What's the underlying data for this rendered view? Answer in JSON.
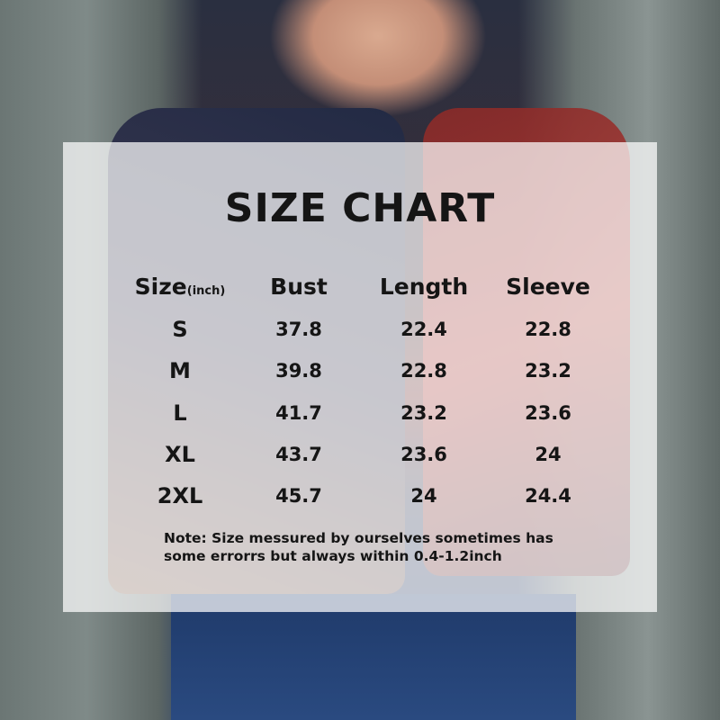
{
  "title": "SIZE CHART",
  "table": {
    "headers": [
      {
        "label": "Size",
        "unit": "(inch)"
      },
      {
        "label": "Bust"
      },
      {
        "label": "Length"
      },
      {
        "label": "Sleeve"
      }
    ],
    "rows": [
      [
        "S",
        "37.8",
        "22.4",
        "22.8"
      ],
      [
        "M",
        "39.8",
        "22.8",
        "23.2"
      ],
      [
        "L",
        "41.7",
        "23.2",
        "23.6"
      ],
      [
        "XL",
        "43.7",
        "23.6",
        "24"
      ],
      [
        "2XL",
        "45.7",
        "24",
        "24.4"
      ]
    ]
  },
  "note_line1": "Note:  Size messured by ourselves sometimes has",
  "note_line2": "some errorrs but always within  0.4-1.2inch"
}
